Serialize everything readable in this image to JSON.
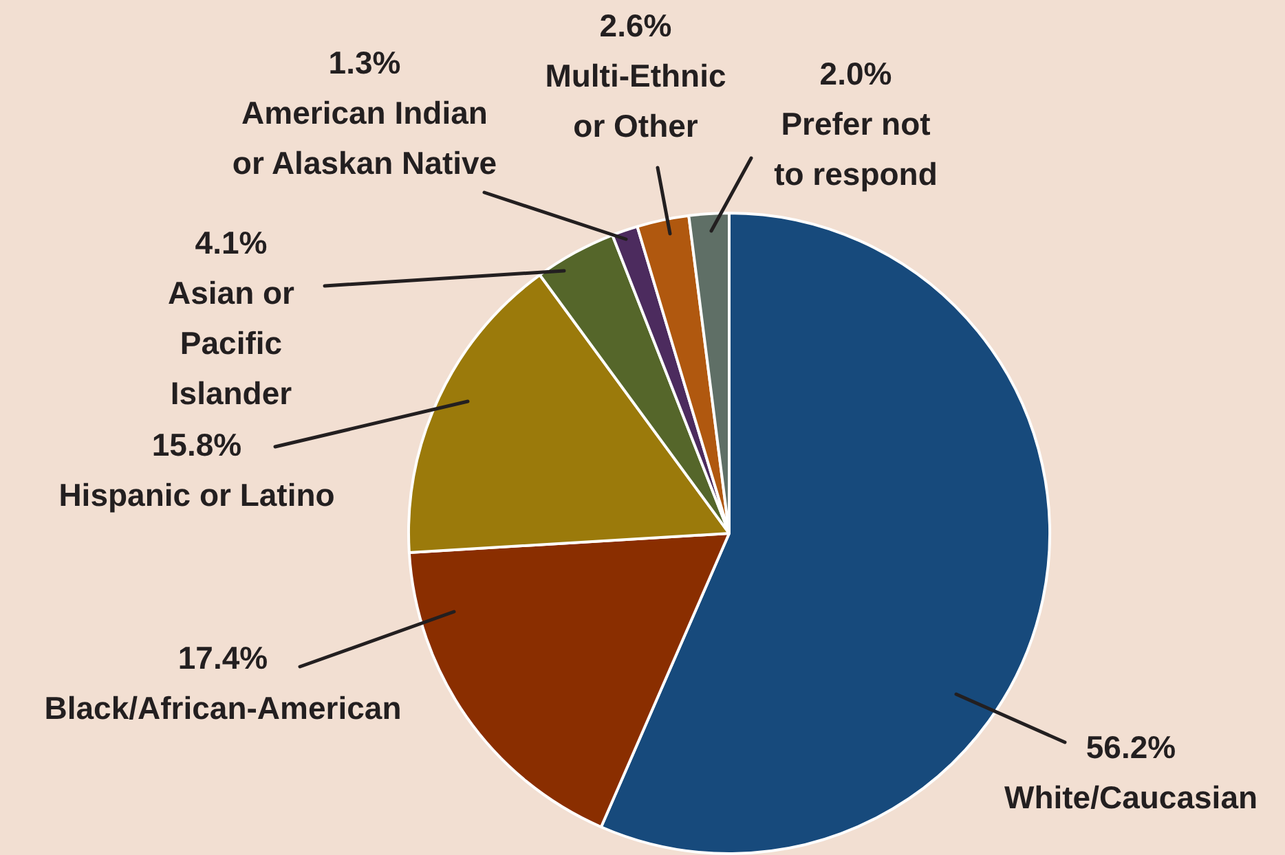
{
  "chart_data": {
    "type": "pie",
    "categories": [
      "White/Caucasian",
      "Black/African-American",
      "Hispanic or Latino",
      "Asian or Pacific Islander",
      "American Indian or Alaskan Native",
      "Multi-Ethnic or Other",
      "Prefer not to respond"
    ],
    "values": [
      56.2,
      17.4,
      15.8,
      4.1,
      1.3,
      2.6,
      2.0
    ],
    "value_labels": [
      "56.2%",
      "17.4%",
      "15.8%",
      "4.1%",
      "1.3%",
      "2.6%",
      "2.0%"
    ],
    "colors": [
      "#174a7c",
      "#8a2e00",
      "#9b7a0b",
      "#55662a",
      "#4c2b5e",
      "#b0580f",
      "#5f6f66"
    ],
    "legend": false
  }
}
